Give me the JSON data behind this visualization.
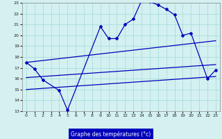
{
  "xlabel": "Graphe des températures (°c)",
  "bg_color": "#d4f0f0",
  "grid_color": "#aadddd",
  "line_color": "#0000bb",
  "xlabel_bg": "#0000bb",
  "xlabel_fg": "#ffffff",
  "xlim": [
    -0.5,
    23.5
  ],
  "ylim": [
    13,
    23
  ],
  "xticks": [
    0,
    1,
    2,
    3,
    4,
    5,
    6,
    7,
    8,
    9,
    10,
    11,
    12,
    13,
    14,
    15,
    16,
    17,
    18,
    19,
    20,
    21,
    22,
    23
  ],
  "yticks": [
    13,
    14,
    15,
    16,
    17,
    18,
    19,
    20,
    21,
    22,
    23
  ],
  "series": [
    {
      "x": [
        0,
        1,
        2,
        4,
        5,
        9,
        10,
        11,
        12,
        13,
        14,
        15,
        16,
        17,
        18,
        19,
        20,
        22,
        23
      ],
      "y": [
        17.5,
        16.9,
        15.9,
        14.9,
        13.1,
        20.8,
        19.7,
        19.7,
        21.0,
        21.5,
        23.2,
        23.1,
        22.8,
        22.4,
        21.9,
        20.0,
        20.2,
        16.0,
        16.8
      ],
      "with_markers": true
    },
    {
      "x": [
        0,
        23
      ],
      "y": [
        17.5,
        19.5
      ],
      "with_markers": false
    },
    {
      "x": [
        0,
        23
      ],
      "y": [
        16.1,
        17.3
      ],
      "with_markers": false
    },
    {
      "x": [
        0,
        23
      ],
      "y": [
        15.0,
        16.2
      ],
      "with_markers": false
    }
  ]
}
